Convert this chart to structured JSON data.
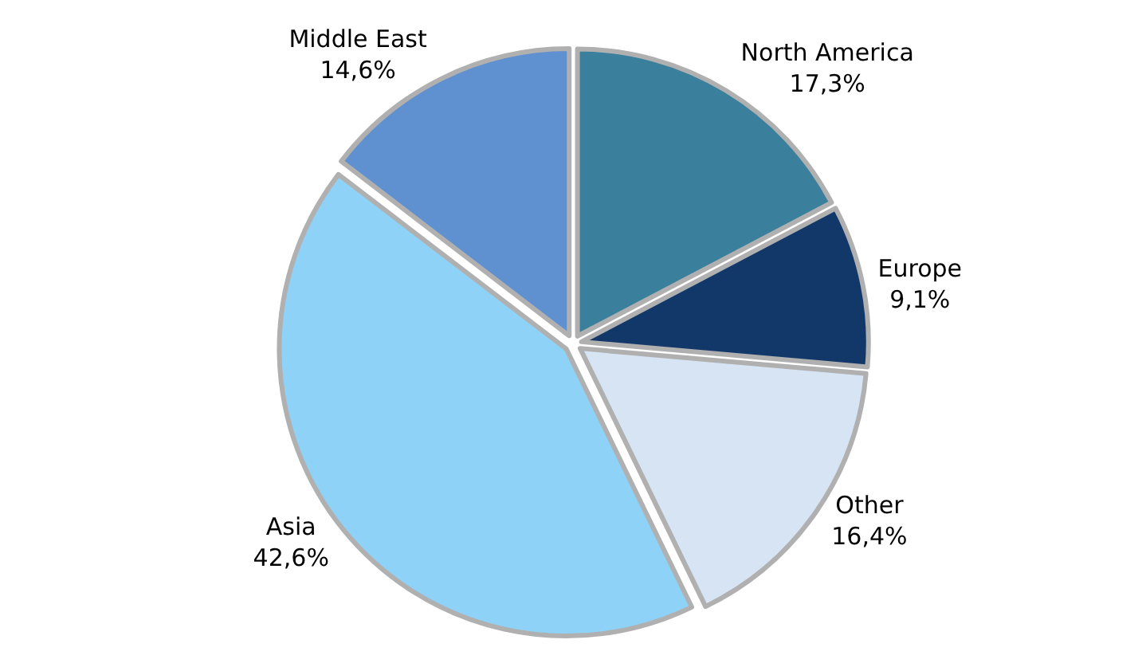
{
  "chart_data": {
    "type": "pie",
    "categories": [
      "North America",
      "Europe",
      "Other",
      "Asia",
      "Middle East"
    ],
    "values": [
      17.3,
      9.1,
      16.4,
      42.6,
      14.6
    ],
    "value_labels": [
      "17,3%",
      "9,1%",
      "16,4%",
      "42,6%",
      "14,6%"
    ],
    "colors": [
      "#3a7f9c",
      "#12386a",
      "#d6e4f4",
      "#8fd2f7",
      "#5f90d0"
    ],
    "legend": false
  }
}
